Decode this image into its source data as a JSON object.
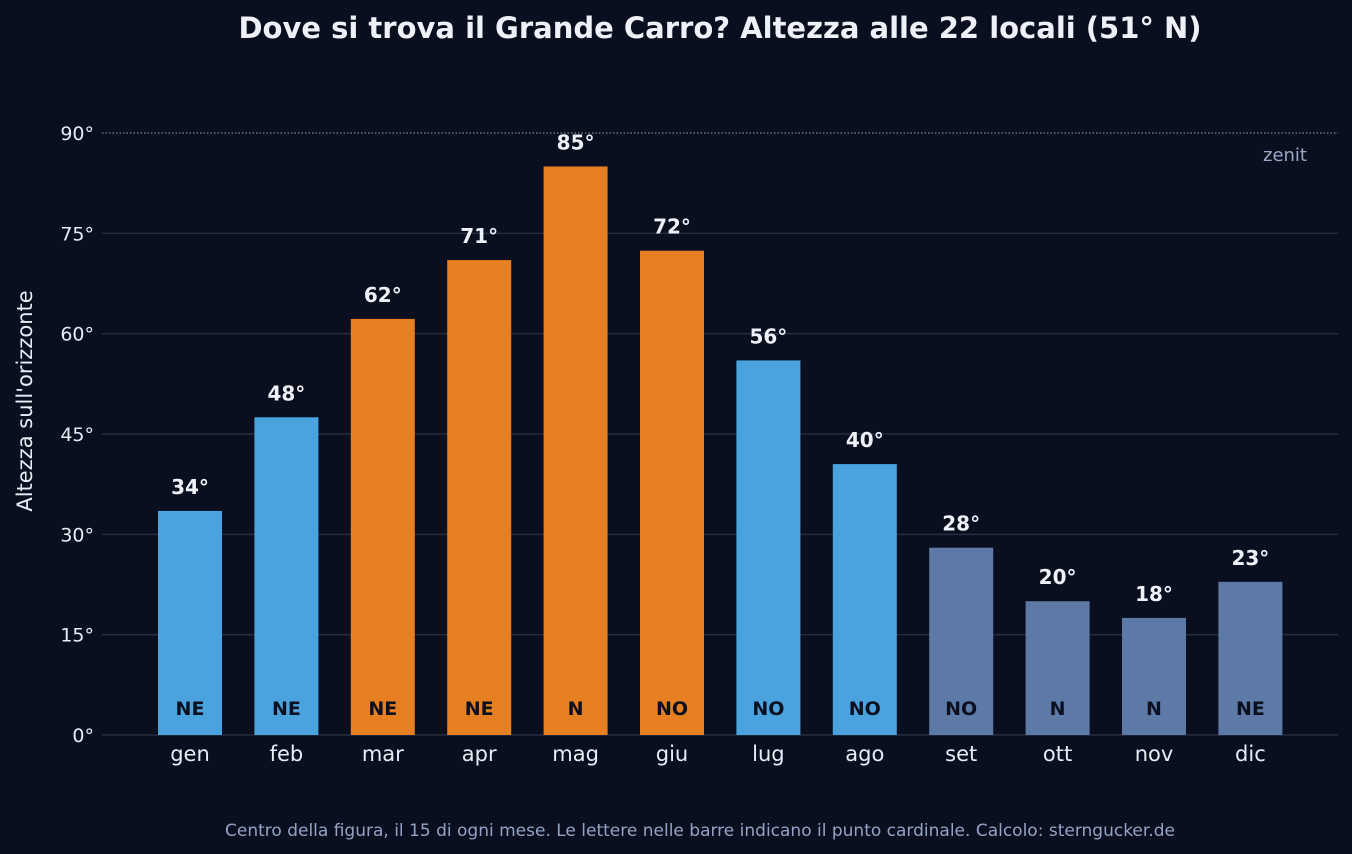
{
  "chart_data": {
    "type": "bar",
    "title": "Dove si trova il Grande Carro? Altezza alle 22 locali (51° N)",
    "xlabel": "",
    "ylabel": "Altezza sull'orizzonte",
    "ylim": [
      0,
      90
    ],
    "yticks": [
      0,
      15,
      30,
      45,
      60,
      75,
      90
    ],
    "ytick_labels": [
      "0°",
      "15°",
      "30°",
      "45°",
      "60°",
      "75°",
      "90°"
    ],
    "grid": true,
    "categories": [
      "gen",
      "feb",
      "mar",
      "apr",
      "mag",
      "giu",
      "lug",
      "ago",
      "set",
      "ott",
      "nov",
      "dic"
    ],
    "values": [
      33.5,
      47.5,
      62.2,
      71,
      85,
      72.4,
      56,
      40.5,
      28,
      20,
      17.5,
      22.9
    ],
    "value_labels": [
      "34°",
      "48°",
      "62°",
      "71°",
      "85°",
      "72°",
      "56°",
      "40°",
      "28°",
      "20°",
      "18°",
      "23°"
    ],
    "directions": [
      "NE",
      "NE",
      "NE",
      "NE",
      "N",
      "NO",
      "NO",
      "NO",
      "NO",
      "N",
      "N",
      "NE"
    ],
    "bar_colors": [
      "#4aa3df",
      "#4aa3df",
      "#e67e22",
      "#e67e22",
      "#e67e22",
      "#e67e22",
      "#4aa3df",
      "#4aa3df",
      "#5d7aa6",
      "#5d7aa6",
      "#5d7aa6",
      "#5d7aa6"
    ],
    "reference_line": {
      "value": 90,
      "label": "zenit",
      "style": "dotted"
    },
    "footnote": "Centro della figura, il 15 di ogni mese. Le lettere nelle barre indicano il punto cardinale.   Calcolo: sterngucker.de"
  },
  "colors": {
    "background": "#0a0f1f",
    "grid": "#262d40",
    "text": "#e8ecf5",
    "muted": "#94a3c4"
  }
}
